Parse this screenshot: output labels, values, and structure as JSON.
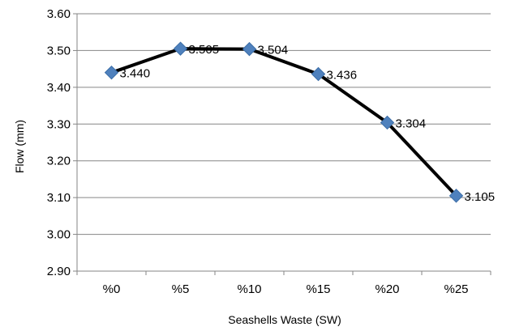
{
  "chart_data": {
    "type": "line",
    "title": "",
    "xlabel": "Seashells Waste (SW)",
    "ylabel": "Flow (mm)",
    "categories": [
      "%0",
      "%5",
      "%10",
      "%15",
      "%20",
      "%25"
    ],
    "series": [
      {
        "values": [
          3.44,
          3.505,
          3.504,
          3.436,
          3.304,
          3.105
        ],
        "labels": [
          "3.440",
          "3.505",
          "3.504",
          "3.436",
          "3.304",
          "3.105"
        ]
      }
    ],
    "ylim": [
      2.9,
      3.6
    ],
    "yticks": [
      2.9,
      3.0,
      3.1,
      3.2,
      3.3,
      3.4,
      3.5,
      3.6
    ],
    "ytick_labels": [
      "2.90",
      "3.00",
      "3.10",
      "3.20",
      "3.30",
      "3.40",
      "3.50",
      "3.60"
    ],
    "grid": "horizontal",
    "legend": "none",
    "colors": {
      "line": "#000000",
      "marker": "#4F81BD",
      "grid": "#868686",
      "axis": "#868686"
    }
  }
}
